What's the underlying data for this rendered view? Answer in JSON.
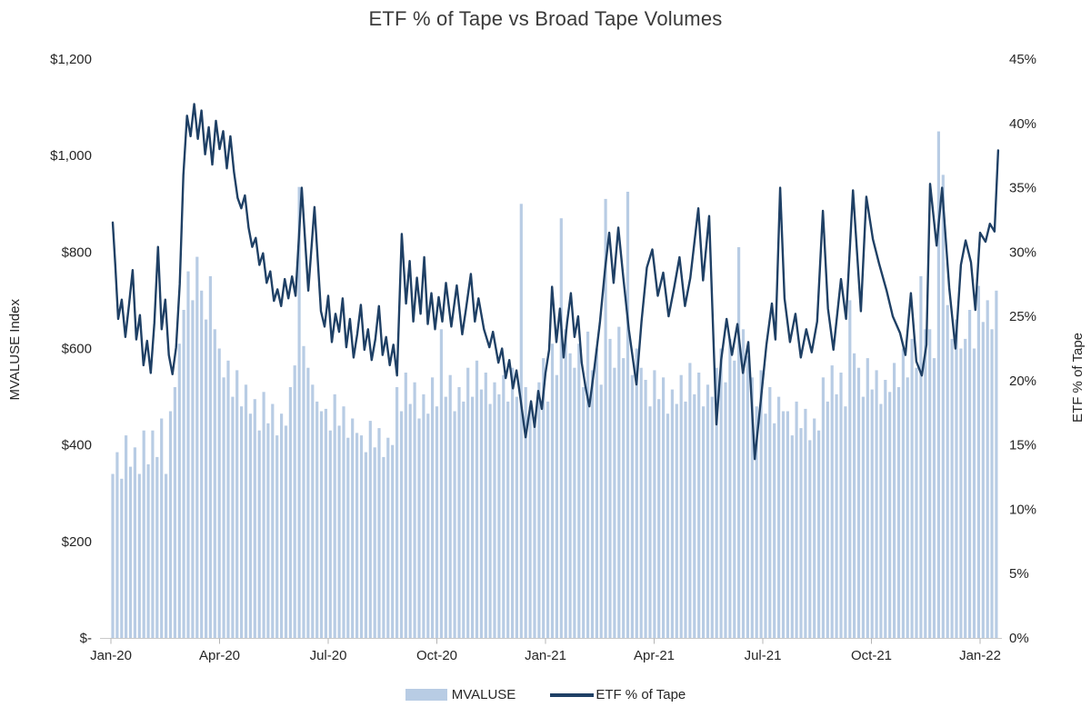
{
  "chart_data": {
    "type": "combo",
    "title": "ETF % of Tape vs Broad Tape Volumes",
    "background": "#ffffff",
    "grid": "off",
    "left_axis": {
      "title": "MVALUSE Index",
      "min": 0,
      "max": 1200,
      "tick_labels": [
        "$1,200",
        "$1,000",
        "$800",
        "$600",
        "$400",
        "$200",
        "$-"
      ],
      "tick_values": [
        1200,
        1000,
        800,
        600,
        400,
        200,
        0
      ]
    },
    "right_axis": {
      "title": "ETF % of Tape",
      "min": 0,
      "max": 45,
      "tick_labels": [
        "45%",
        "40%",
        "35%",
        "30%",
        "25%",
        "20%",
        "15%",
        "10%",
        "5%",
        "0%"
      ],
      "tick_values": [
        45,
        40,
        35,
        30,
        25,
        20,
        15,
        10,
        5,
        0
      ]
    },
    "x_axis": {
      "tick_labels": [
        "Jan-20",
        "Apr-20",
        "Jul-20",
        "Oct-20",
        "Jan-21",
        "Apr-21",
        "Jul-21",
        "Oct-21",
        "Jan-22"
      ],
      "tick_months": [
        0,
        3,
        6,
        9,
        12,
        15,
        18,
        21,
        24
      ]
    },
    "legend": [
      {
        "label": "MVALUSE",
        "type": "bar",
        "color": "#b8cce4"
      },
      {
        "label": "ETF % of Tape",
        "type": "line",
        "color": "#1f4065"
      }
    ],
    "series": [
      {
        "name": "MVALUSE",
        "type": "bar",
        "axis": "left",
        "unit": "USD index level",
        "x_start_month": 0.05,
        "x_end_month": 24.45,
        "values": [
          340,
          385,
          330,
          420,
          355,
          395,
          340,
          430,
          360,
          430,
          375,
          455,
          340,
          470,
          520,
          610,
          680,
          760,
          700,
          790,
          720,
          660,
          750,
          640,
          600,
          540,
          575,
          500,
          555,
          480,
          525,
          465,
          495,
          430,
          510,
          445,
          485,
          420,
          465,
          440,
          520,
          565,
          935,
          605,
          560,
          525,
          490,
          470,
          475,
          430,
          505,
          440,
          480,
          415,
          455,
          425,
          420,
          385,
          450,
          395,
          435,
          375,
          415,
          400,
          520,
          470,
          550,
          485,
          530,
          455,
          505,
          465,
          540,
          480,
          640,
          500,
          545,
          470,
          520,
          490,
          560,
          500,
          575,
          515,
          550,
          485,
          530,
          505,
          545,
          490,
          560,
          500,
          900,
          520,
          480,
          455,
          530,
          580,
          490,
          610,
          545,
          870,
          640,
          590,
          560,
          610,
          520,
          635,
          555,
          600,
          525,
          910,
          620,
          560,
          645,
          580,
          925,
          545,
          600,
          560,
          535,
          480,
          555,
          495,
          540,
          465,
          515,
          485,
          545,
          490,
          570,
          505,
          550,
          480,
          525,
          500,
          560,
          600,
          530,
          620,
          575,
          810,
          640,
          585,
          540,
          480,
          555,
          465,
          520,
          445,
          500,
          470,
          470,
          420,
          490,
          435,
          475,
          410,
          455,
          430,
          540,
          490,
          565,
          505,
          550,
          480,
          700,
          590,
          560,
          500,
          580,
          515,
          555,
          485,
          535,
          510,
          570,
          520,
          600,
          540,
          620,
          560,
          750,
          640,
          640,
          580,
          1050,
          960,
          690,
          620,
          660,
          600,
          620,
          680,
          600,
          730,
          655,
          700,
          640,
          720
        ]
      },
      {
        "name": "ETF % of Tape",
        "type": "line",
        "axis": "right",
        "unit": "%",
        "points": [
          [
            0.05,
            32.3
          ],
          [
            0.12,
            29.0
          ],
          [
            0.2,
            24.8
          ],
          [
            0.3,
            26.3
          ],
          [
            0.4,
            23.4
          ],
          [
            0.5,
            25.9
          ],
          [
            0.6,
            28.6
          ],
          [
            0.7,
            23.2
          ],
          [
            0.8,
            25.1
          ],
          [
            0.9,
            21.2
          ],
          [
            1.0,
            23.1
          ],
          [
            1.1,
            20.6
          ],
          [
            1.2,
            24.5
          ],
          [
            1.3,
            30.4
          ],
          [
            1.4,
            24.0
          ],
          [
            1.5,
            26.3
          ],
          [
            1.6,
            22.0
          ],
          [
            1.7,
            20.5
          ],
          [
            1.8,
            22.6
          ],
          [
            1.9,
            27.5
          ],
          [
            2.0,
            36.0
          ],
          [
            2.1,
            40.6
          ],
          [
            2.2,
            39.0
          ],
          [
            2.3,
            41.5
          ],
          [
            2.4,
            38.8
          ],
          [
            2.5,
            41.0
          ],
          [
            2.6,
            37.6
          ],
          [
            2.7,
            39.7
          ],
          [
            2.8,
            36.8
          ],
          [
            2.9,
            40.2
          ],
          [
            3.0,
            38.0
          ],
          [
            3.1,
            39.4
          ],
          [
            3.2,
            36.5
          ],
          [
            3.3,
            39.0
          ],
          [
            3.4,
            36.2
          ],
          [
            3.5,
            34.2
          ],
          [
            3.6,
            33.4
          ],
          [
            3.7,
            34.4
          ],
          [
            3.8,
            31.9
          ],
          [
            3.9,
            30.4
          ],
          [
            4.0,
            31.1
          ],
          [
            4.1,
            29.0
          ],
          [
            4.2,
            29.9
          ],
          [
            4.3,
            27.6
          ],
          [
            4.4,
            28.5
          ],
          [
            4.5,
            26.2
          ],
          [
            4.6,
            27.1
          ],
          [
            4.7,
            25.8
          ],
          [
            4.8,
            27.9
          ],
          [
            4.9,
            26.4
          ],
          [
            5.0,
            28.1
          ],
          [
            5.1,
            26.6
          ],
          [
            5.27,
            35.0
          ],
          [
            5.45,
            27.0
          ],
          [
            5.62,
            33.5
          ],
          [
            5.8,
            25.4
          ],
          [
            5.9,
            24.2
          ],
          [
            6.0,
            26.6
          ],
          [
            6.1,
            23.0
          ],
          [
            6.2,
            25.2
          ],
          [
            6.3,
            23.8
          ],
          [
            6.4,
            26.4
          ],
          [
            6.5,
            22.6
          ],
          [
            6.6,
            24.8
          ],
          [
            6.7,
            21.8
          ],
          [
            6.8,
            23.6
          ],
          [
            6.9,
            25.9
          ],
          [
            7.0,
            22.4
          ],
          [
            7.1,
            24.0
          ],
          [
            7.2,
            21.6
          ],
          [
            7.3,
            23.2
          ],
          [
            7.4,
            25.8
          ],
          [
            7.5,
            22.0
          ],
          [
            7.6,
            23.4
          ],
          [
            7.7,
            21.2
          ],
          [
            7.8,
            22.8
          ],
          [
            7.9,
            20.4
          ],
          [
            8.03,
            31.4
          ],
          [
            8.15,
            26.0
          ],
          [
            8.25,
            29.3
          ],
          [
            8.35,
            24.6
          ],
          [
            8.45,
            28.0
          ],
          [
            8.55,
            25.2
          ],
          [
            8.65,
            29.6
          ],
          [
            8.75,
            24.4
          ],
          [
            8.85,
            26.8
          ],
          [
            8.95,
            24.0
          ],
          [
            9.05,
            26.5
          ],
          [
            9.15,
            24.6
          ],
          [
            9.25,
            27.6
          ],
          [
            9.4,
            24.2
          ],
          [
            9.55,
            27.4
          ],
          [
            9.7,
            23.6
          ],
          [
            9.8,
            25.5
          ],
          [
            9.94,
            28.3
          ],
          [
            10.05,
            24.6
          ],
          [
            10.15,
            26.4
          ],
          [
            10.3,
            24.0
          ],
          [
            10.45,
            22.6
          ],
          [
            10.55,
            23.8
          ],
          [
            10.7,
            21.4
          ],
          [
            10.8,
            22.5
          ],
          [
            10.9,
            20.2
          ],
          [
            11.0,
            21.6
          ],
          [
            11.1,
            19.4
          ],
          [
            11.2,
            20.8
          ],
          [
            11.3,
            18.8
          ],
          [
            11.45,
            15.6
          ],
          [
            11.6,
            18.4
          ],
          [
            11.7,
            16.4
          ],
          [
            11.8,
            19.2
          ],
          [
            11.9,
            17.8
          ],
          [
            12.0,
            20.6
          ],
          [
            12.1,
            22.4
          ],
          [
            12.18,
            27.3
          ],
          [
            12.3,
            23.0
          ],
          [
            12.4,
            25.6
          ],
          [
            12.5,
            21.8
          ],
          [
            12.6,
            24.6
          ],
          [
            12.7,
            26.8
          ],
          [
            12.8,
            23.4
          ],
          [
            12.9,
            25.0
          ],
          [
            13.0,
            21.4
          ],
          [
            13.1,
            19.6
          ],
          [
            13.21,
            18.0
          ],
          [
            13.35,
            21.0
          ],
          [
            13.5,
            24.5
          ],
          [
            13.65,
            28.8
          ],
          [
            13.76,
            31.5
          ],
          [
            13.88,
            27.6
          ],
          [
            14.01,
            31.9
          ],
          [
            14.15,
            28.0
          ],
          [
            14.3,
            24.0
          ],
          [
            14.51,
            19.7
          ],
          [
            14.65,
            24.6
          ],
          [
            14.8,
            28.8
          ],
          [
            14.95,
            30.2
          ],
          [
            15.1,
            26.6
          ],
          [
            15.25,
            28.4
          ],
          [
            15.4,
            25.0
          ],
          [
            15.55,
            27.2
          ],
          [
            15.7,
            29.6
          ],
          [
            15.85,
            25.8
          ],
          [
            16.0,
            28.0
          ],
          [
            16.22,
            33.4
          ],
          [
            16.35,
            27.8
          ],
          [
            16.52,
            32.8
          ],
          [
            16.72,
            16.6
          ],
          [
            16.85,
            21.6
          ],
          [
            17.0,
            24.8
          ],
          [
            17.15,
            22.0
          ],
          [
            17.3,
            24.4
          ],
          [
            17.45,
            20.6
          ],
          [
            17.6,
            23.0
          ],
          [
            17.78,
            13.9
          ],
          [
            17.95,
            18.6
          ],
          [
            18.1,
            22.8
          ],
          [
            18.25,
            26.0
          ],
          [
            18.35,
            23.2
          ],
          [
            18.48,
            35.0
          ],
          [
            18.6,
            26.4
          ],
          [
            18.75,
            23.0
          ],
          [
            18.9,
            25.2
          ],
          [
            19.05,
            21.8
          ],
          [
            19.2,
            24.0
          ],
          [
            19.35,
            22.2
          ],
          [
            19.5,
            24.6
          ],
          [
            19.66,
            33.2
          ],
          [
            19.8,
            25.6
          ],
          [
            19.95,
            22.4
          ],
          [
            20.16,
            27.9
          ],
          [
            20.3,
            24.8
          ],
          [
            20.49,
            34.8
          ],
          [
            20.71,
            25.4
          ],
          [
            20.86,
            34.3
          ],
          [
            21.04,
            31.0
          ],
          [
            21.21,
            29.1
          ],
          [
            21.42,
            27.0
          ],
          [
            21.59,
            25.0
          ],
          [
            21.79,
            23.7
          ],
          [
            21.94,
            22.0
          ],
          [
            22.09,
            26.8
          ],
          [
            22.24,
            21.5
          ],
          [
            22.39,
            20.4
          ],
          [
            22.52,
            22.8
          ],
          [
            22.62,
            35.3
          ],
          [
            22.8,
            30.5
          ],
          [
            22.95,
            35.0
          ],
          [
            23.15,
            27.2
          ],
          [
            23.32,
            22.5
          ],
          [
            23.47,
            29.0
          ],
          [
            23.6,
            30.9
          ],
          [
            23.75,
            29.2
          ],
          [
            23.87,
            25.5
          ],
          [
            24.0,
            31.5
          ],
          [
            24.15,
            30.8
          ],
          [
            24.27,
            32.2
          ],
          [
            24.4,
            31.6
          ],
          [
            24.5,
            37.9
          ]
        ]
      }
    ]
  }
}
